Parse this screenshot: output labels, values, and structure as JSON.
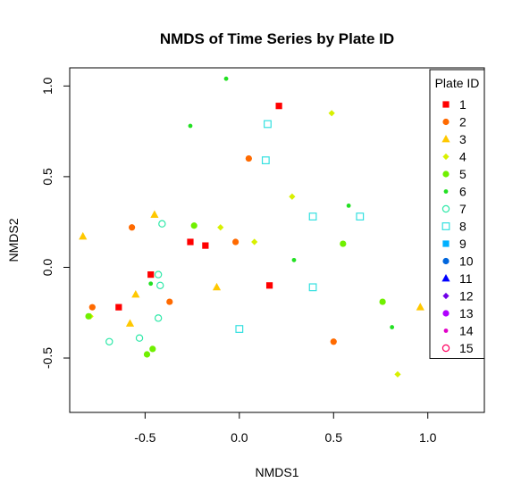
{
  "chart_data": {
    "type": "scatter",
    "title": "NMDS of Time Series by Plate ID",
    "xlabel": "NMDS1",
    "ylabel": "NMDS2",
    "xlim": [
      -0.9,
      1.3
    ],
    "ylim": [
      -0.8,
      1.1
    ],
    "xticks": [
      -0.5,
      0.0,
      0.5,
      1.0
    ],
    "xtick_labels": [
      "-0.5",
      "0.0",
      "0.5",
      "1.0"
    ],
    "yticks": [
      -0.5,
      0.0,
      0.5,
      1.0
    ],
    "ytick_labels": [
      "-0.5",
      "0.0",
      "0.5",
      "1.0"
    ],
    "legend": {
      "title": "Plate ID",
      "placement": "top-right"
    },
    "series": [
      {
        "name": "1",
        "symbol": "square-filled",
        "color": "#ff0000",
        "points": [
          [
            0.21,
            0.89
          ],
          [
            -0.26,
            0.14
          ],
          [
            -0.18,
            0.12
          ],
          [
            -0.47,
            -0.04
          ],
          [
            -0.64,
            -0.22
          ],
          [
            0.16,
            -0.1
          ]
        ]
      },
      {
        "name": "2",
        "symbol": "circle-filled",
        "color": "#ff6a00",
        "points": [
          [
            0.05,
            0.6
          ],
          [
            -0.57,
            0.22
          ],
          [
            -0.02,
            0.14
          ],
          [
            -0.37,
            -0.19
          ],
          [
            -0.78,
            -0.22
          ],
          [
            0.5,
            -0.41
          ]
        ]
      },
      {
        "name": "3",
        "symbol": "triangle-filled",
        "color": "#ffc800",
        "points": [
          [
            -0.45,
            0.29
          ],
          [
            -0.83,
            0.17
          ],
          [
            -0.55,
            -0.15
          ],
          [
            -0.12,
            -0.11
          ],
          [
            -0.58,
            -0.31
          ],
          [
            0.96,
            -0.22
          ]
        ]
      },
      {
        "name": "4",
        "symbol": "diamond-filled",
        "color": "#d8f000",
        "points": [
          [
            0.49,
            0.85
          ],
          [
            0.28,
            0.39
          ],
          [
            -0.1,
            0.22
          ],
          [
            0.08,
            0.14
          ],
          [
            -0.79,
            -0.27
          ],
          [
            0.84,
            -0.59
          ]
        ]
      },
      {
        "name": "5",
        "symbol": "circle-filled",
        "color": "#70f000",
        "points": [
          [
            -0.24,
            0.23
          ],
          [
            0.55,
            0.13
          ],
          [
            0.76,
            -0.19
          ],
          [
            -0.8,
            -0.27
          ],
          [
            -0.46,
            -0.45
          ],
          [
            -0.49,
            -0.48
          ]
        ]
      },
      {
        "name": "6",
        "symbol": "dot-filled",
        "color": "#22e022",
        "points": [
          [
            -0.07,
            1.04
          ],
          [
            -0.26,
            0.78
          ],
          [
            0.58,
            0.34
          ],
          [
            0.29,
            0.04
          ],
          [
            -0.47,
            -0.09
          ],
          [
            0.81,
            -0.33
          ]
        ]
      },
      {
        "name": "7",
        "symbol": "circle-open",
        "color": "#2ee8a8",
        "points": [
          [
            -0.41,
            0.24
          ],
          [
            -0.43,
            -0.04
          ],
          [
            -0.42,
            -0.1
          ],
          [
            -0.43,
            -0.28
          ],
          [
            -0.53,
            -0.39
          ],
          [
            -0.69,
            -0.41
          ]
        ]
      },
      {
        "name": "8",
        "symbol": "square-open",
        "color": "#34e0e0",
        "points": [
          [
            0.15,
            0.79
          ],
          [
            0.14,
            0.59
          ],
          [
            0.39,
            0.28
          ],
          [
            0.64,
            0.28
          ],
          [
            0.39,
            -0.11
          ],
          [
            0.0,
            -0.34
          ]
        ]
      },
      {
        "name": "9",
        "symbol": "square-filled",
        "color": "#00b0ff",
        "points": []
      },
      {
        "name": "10",
        "symbol": "circle-filled",
        "color": "#0066dd",
        "points": []
      },
      {
        "name": "11",
        "symbol": "triangle-filled",
        "color": "#0000ff",
        "points": []
      },
      {
        "name": "12",
        "symbol": "diamond-filled",
        "color": "#7000e8",
        "points": []
      },
      {
        "name": "13",
        "symbol": "circle-filled",
        "color": "#b000ff",
        "points": []
      },
      {
        "name": "14",
        "symbol": "dot-filled",
        "color": "#e000c8",
        "points": []
      },
      {
        "name": "15",
        "symbol": "circle-open",
        "color": "#ff0060",
        "points": []
      }
    ]
  }
}
